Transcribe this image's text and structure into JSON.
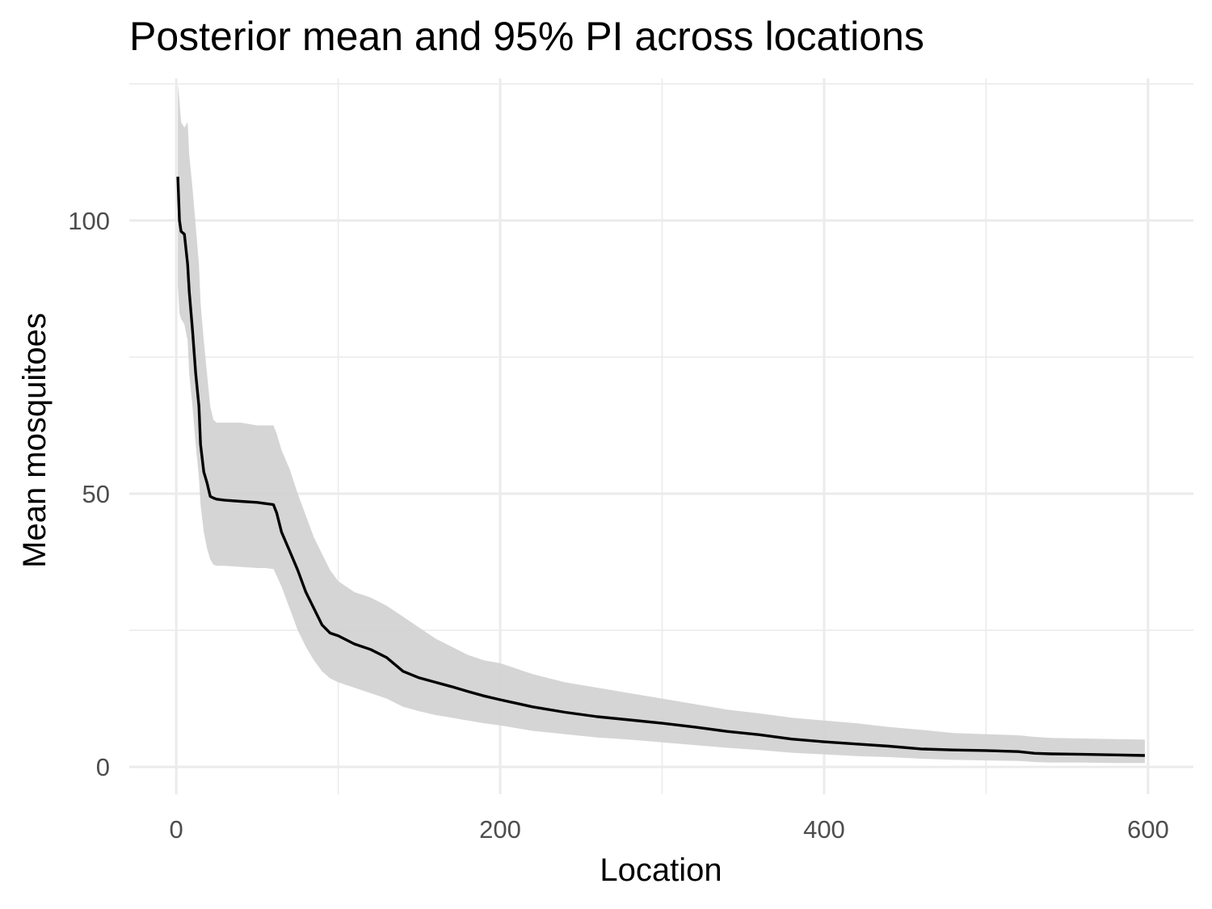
{
  "chart_data": {
    "type": "line",
    "title": "Posterior mean and 95% PI across locations",
    "xlabel": "Location",
    "ylabel": "Mean mosquitoes",
    "xlim": [
      -29,
      628
    ],
    "ylim": [
      -5,
      126
    ],
    "x_ticks": [
      0,
      200,
      400,
      600
    ],
    "x_tick_labels": [
      "0",
      "200",
      "400",
      "600"
    ],
    "y_ticks": [
      0,
      50,
      100
    ],
    "y_tick_labels": [
      "0",
      "50",
      "100"
    ],
    "grid": true,
    "legend": "none",
    "colors": {
      "line": "#000000",
      "band": "#d3d3d3",
      "grid": "#ebebeb"
    },
    "series": [
      {
        "kind": "line",
        "x": [
          1,
          2,
          3,
          5,
          7,
          8,
          10,
          12,
          14,
          15,
          17,
          19,
          21,
          23,
          25,
          30,
          40,
          50,
          55,
          60,
          62,
          65,
          70,
          75,
          80,
          85,
          90,
          95,
          100,
          110,
          120,
          130,
          140,
          150,
          160,
          170,
          180,
          190,
          200,
          220,
          240,
          260,
          280,
          300,
          320,
          340,
          360,
          380,
          400,
          420,
          440,
          460,
          480,
          500,
          520,
          530,
          540,
          560,
          580,
          598
        ],
        "y": [
          108,
          100,
          98,
          97.5,
          92,
          87,
          80,
          72,
          66,
          59,
          54,
          52,
          49.5,
          49.2,
          49,
          48.8,
          48.6,
          48.4,
          48.2,
          48,
          46.5,
          43,
          39.5,
          36,
          32,
          29,
          26,
          24.5,
          24,
          22.5,
          21.5,
          20,
          17.5,
          16.3,
          15.5,
          14.7,
          13.8,
          13,
          12.3,
          11,
          10,
          9.2,
          8.6,
          8,
          7.3,
          6.5,
          5.9,
          5.1,
          4.6,
          4.2,
          3.8,
          3.3,
          3.1,
          3,
          2.8,
          2.5,
          2.4,
          2.3,
          2.2,
          2.1
        ]
      },
      {
        "kind": "band",
        "x": [
          1,
          2,
          3,
          5,
          7,
          8,
          10,
          12,
          14,
          15,
          17,
          19,
          21,
          23,
          25,
          30,
          40,
          50,
          55,
          60,
          62,
          65,
          70,
          75,
          80,
          85,
          90,
          95,
          100,
          110,
          120,
          130,
          140,
          150,
          160,
          170,
          180,
          190,
          200,
          220,
          240,
          260,
          280,
          300,
          320,
          340,
          360,
          380,
          400,
          420,
          440,
          460,
          480,
          500,
          520,
          530,
          540,
          560,
          580,
          598
        ],
        "lower": [
          88,
          83,
          82,
          81,
          78,
          72,
          66,
          59,
          53,
          48,
          43,
          40,
          38,
          37,
          36.8,
          36.8,
          36.6,
          36.4,
          36.4,
          36.2,
          35,
          33,
          29,
          25,
          22,
          19.5,
          17.5,
          16.2,
          15.5,
          14.5,
          13.5,
          12.5,
          11,
          10.2,
          9.5,
          9,
          8.5,
          8,
          7.6,
          6.6,
          6,
          5.4,
          5,
          4.5,
          4,
          3.5,
          3.1,
          2.6,
          2.3,
          2,
          1.8,
          1.5,
          1.3,
          1.2,
          1.1,
          0.9,
          0.8,
          0.8,
          0.7,
          0.7
        ],
        "upper": [
          125,
          122,
          118,
          117,
          118,
          112,
          106,
          99,
          92,
          85,
          78,
          72,
          66,
          63.5,
          63,
          63,
          63,
          62.5,
          62.5,
          62.5,
          61,
          58,
          54.5,
          50,
          46,
          42,
          39,
          36,
          34,
          32,
          31,
          29.5,
          27.5,
          25.5,
          23.5,
          22,
          20.5,
          19.5,
          19,
          17,
          15.5,
          14.5,
          13.5,
          12.5,
          11.5,
          10.5,
          9.8,
          9,
          8.5,
          8,
          7.3,
          6.8,
          6.2,
          6,
          5.8,
          5.5,
          5.3,
          5.2,
          5.1,
          5
        ]
      }
    ]
  }
}
